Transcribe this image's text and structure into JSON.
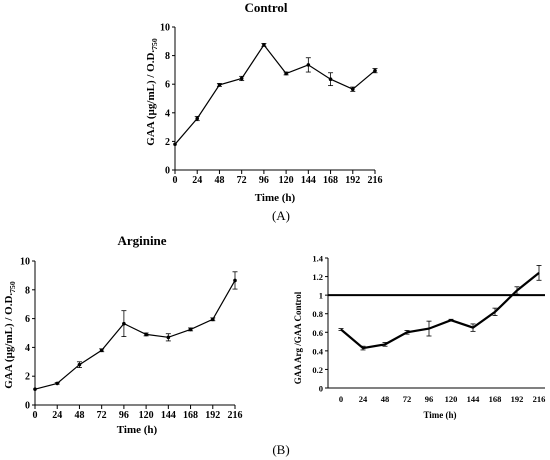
{
  "panel_labels": {
    "a": "(A)",
    "b": "(B)"
  },
  "chart_data": [
    {
      "type": "line",
      "title": "Control",
      "xlabel": "Time (h)",
      "ylabel": "GAA (µg/mL) / O.D.",
      "ylabel_sub": "750",
      "x": [
        0,
        24,
        48,
        72,
        96,
        120,
        144,
        168,
        192,
        216
      ],
      "values": [
        1.8,
        3.6,
        5.95,
        6.4,
        8.75,
        6.75,
        7.35,
        6.35,
        5.65,
        6.95
      ],
      "errors": [
        0,
        0.15,
        0.1,
        0.15,
        0.1,
        0.1,
        0.5,
        0.45,
        0.15,
        0.15
      ],
      "xlim": [
        0,
        216
      ],
      "ylim": [
        0,
        10
      ],
      "xticks": [
        "0",
        "24",
        "48",
        "72",
        "96",
        "120",
        "144",
        "168",
        "192",
        "216"
      ],
      "yticks": [
        "0",
        "2",
        "4",
        "6",
        "8",
        "10"
      ],
      "grid": false
    },
    {
      "type": "line",
      "title": "Arginine",
      "xlabel": "Time (h)",
      "ylabel": "GAA (µg/mL) / O.D.",
      "ylabel_sub": "750",
      "x": [
        0,
        24,
        48,
        72,
        96,
        120,
        144,
        168,
        192,
        216
      ],
      "values": [
        1.1,
        1.5,
        2.8,
        3.8,
        5.65,
        4.9,
        4.7,
        5.25,
        5.95,
        8.65
      ],
      "errors": [
        0,
        0.05,
        0.2,
        0.1,
        0.9,
        0.1,
        0.25,
        0.1,
        0.1,
        0.6
      ],
      "xlim": [
        0,
        216
      ],
      "ylim": [
        0,
        10
      ],
      "xticks": [
        "0",
        "24",
        "48",
        "72",
        "96",
        "120",
        "144",
        "168",
        "192",
        "216"
      ],
      "yticks": [
        "0",
        "2",
        "4",
        "6",
        "8",
        "10"
      ],
      "grid": false
    },
    {
      "type": "line",
      "title": "",
      "xlabel": "Time (h)",
      "ylabel": "GAA Arg /GAA Control",
      "x": [
        0,
        24,
        48,
        72,
        96,
        120,
        144,
        168,
        192,
        216
      ],
      "values": [
        0.63,
        0.43,
        0.47,
        0.6,
        0.64,
        0.73,
        0.65,
        0.82,
        1.05,
        1.24
      ],
      "errors": [
        0.01,
        0.02,
        0.02,
        0.02,
        0.08,
        0.01,
        0.04,
        0.04,
        0.04,
        0.08
      ],
      "reference_line": 1,
      "xlim": [
        0,
        216
      ],
      "ylim": [
        0,
        1.4
      ],
      "xticks": [
        "0",
        "24",
        "48",
        "72",
        "96",
        "120",
        "144",
        "168",
        "192",
        "216"
      ],
      "yticks": [
        "0",
        "0.2",
        "0.4",
        "0.6",
        "0.8",
        "1",
        "1.2",
        "1.4"
      ],
      "grid": false
    }
  ]
}
